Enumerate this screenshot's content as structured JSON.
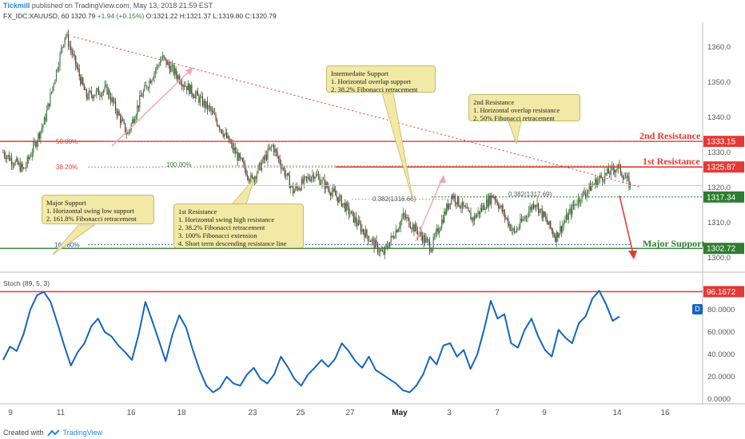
{
  "header": {
    "brand": "Tickmill",
    "published": "published on TradingView.com, May 13, 2018 21:59 EST",
    "symbol": "FX_IDC:XAUUSD, 60",
    "last": "1320.79",
    "change": "+1.94 (+0.15%)",
    "ohlc": "O:1321.22 H:1321.37 L:1319.80 C:1320.79"
  },
  "footer": {
    "created_with": "Created with",
    "tradingview": "TradingView"
  },
  "notes": {
    "intermediate": "Intermedaite Support\n1. Horizontal overlap support\n2. 38.2% Fibonacci retracement",
    "second_resistance": "2nd Resistance\n1. Horizontal overlap resistance\n2. 50% Fibonacci retracement",
    "major_support": "Major Support\n1. Horizontal swing low support\n2. 161.8% Fibonacci retracement",
    "first_resistance": "1st Resistance\n1. Horizontal swing high resistance\n2. 38.2% Fibonacci retracement\n3. 100% Fibonacci extension\n4. Short term descending resistance line"
  },
  "labels": {
    "second_resistance": "2nd Resistance",
    "first_resistance": "1st Resistance",
    "major_support": "Major Support",
    "fib_50": "50.00%",
    "fib_382": "38.20%",
    "fib_100": "100.00%",
    "fib_1618": "161.80%",
    "fib_382_a": "0.382(1316.66)",
    "fib_382_b": "0.382(1317.69)",
    "stoch_title": "Stoch (89, 5, 3)",
    "stoch_badge": "D"
  },
  "colors": {
    "resistance": "#e53935",
    "support": "#2e7d32",
    "stoch_line": "#1565c0",
    "candle_up": "#3f7d3f",
    "candle_down": "#5d4037",
    "note_bg": "#f1e9a5"
  },
  "chart_data": [
    {
      "type": "candlestick",
      "symbol": "FX_IDC:XAUUSD",
      "interval": "60",
      "ylim": [
        1298,
        1367
      ],
      "y_ticks": [
        1300.0,
        1310.0,
        1320.0,
        1330.0,
        1340.0,
        1350.0,
        1360.0
      ],
      "x_ticks": [
        "9",
        "11",
        "16",
        "18",
        "23",
        "25",
        "27",
        "May",
        "3",
        "7",
        "9",
        "14",
        "16"
      ],
      "levels": [
        {
          "name": "2nd Resistance",
          "price": 1333.15,
          "tag": "1333.15"
        },
        {
          "name": "1st Resistance",
          "price": 1325.87,
          "tag": "1325.87"
        },
        {
          "name": "Intermediate Support",
          "price": 1317.34,
          "tag": "1317.34"
        },
        {
          "name": "Major Support",
          "price": 1302.72,
          "tag": "1302.72"
        }
      ],
      "fib_levels": [
        {
          "label": "50.00%",
          "price": 1333.15
        },
        {
          "label": "38.20%",
          "price": 1325.87
        },
        {
          "label": "100.00%",
          "price": 1326.2
        },
        {
          "label": "161.80%",
          "price": 1303.8
        },
        {
          "label": "0.382(1316.66)",
          "price": 1316.66
        },
        {
          "label": "0.382(1317.69)",
          "price": 1317.69
        }
      ],
      "path": [
        [
          0,
          1330
        ],
        [
          3,
          1325
        ],
        [
          6,
          1339
        ],
        [
          9,
          1364
        ],
        [
          12,
          1346
        ],
        [
          15,
          1348
        ],
        [
          18,
          1335
        ],
        [
          20,
          1346
        ],
        [
          23,
          1357
        ],
        [
          26,
          1350
        ],
        [
          30,
          1342
        ],
        [
          33,
          1332
        ],
        [
          36,
          1322
        ],
        [
          39,
          1332
        ],
        [
          42,
          1319
        ],
        [
          45,
          1324
        ],
        [
          49,
          1316
        ],
        [
          52,
          1308
        ],
        [
          55,
          1301
        ],
        [
          58,
          1312
        ],
        [
          62,
          1303
        ],
        [
          65,
          1318
        ],
        [
          68,
          1311
        ],
        [
          71,
          1318
        ],
        [
          74,
          1307
        ],
        [
          77,
          1316
        ],
        [
          80,
          1306
        ],
        [
          83,
          1316
        ],
        [
          86,
          1322
        ],
        [
          89,
          1326
        ],
        [
          91,
          1320
        ]
      ]
    },
    {
      "type": "line",
      "title": "Stoch (89, 5, 3)",
      "ylim": [
        0,
        100
      ],
      "y_ticks": [
        0.0,
        20.0,
        40.0,
        60.0,
        80.0
      ],
      "level": 96.1672,
      "level_tag": "96.1672",
      "series": [
        {
          "values": [
            35,
            47,
            43,
            58,
            80,
            93,
            96,
            87,
            68,
            48,
            30,
            42,
            50,
            65,
            72,
            60,
            56,
            48,
            42,
            35,
            58,
            87,
            70,
            52,
            34,
            58,
            75,
            64,
            44,
            26,
            12,
            6,
            10,
            20,
            14,
            12,
            22,
            28,
            18,
            14,
            22,
            38,
            29,
            18,
            12,
            22,
            28,
            35,
            29,
            36,
            50,
            43,
            34,
            28,
            38,
            26,
            22,
            18,
            14,
            8,
            6,
            12,
            22,
            38,
            31,
            48,
            50,
            38,
            44,
            27,
            40,
            62,
            88,
            72,
            76,
            50,
            46,
            62,
            72,
            56,
            44,
            38,
            62,
            55,
            50,
            68,
            74,
            90,
            97,
            85,
            70,
            74
          ]
        }
      ]
    }
  ]
}
